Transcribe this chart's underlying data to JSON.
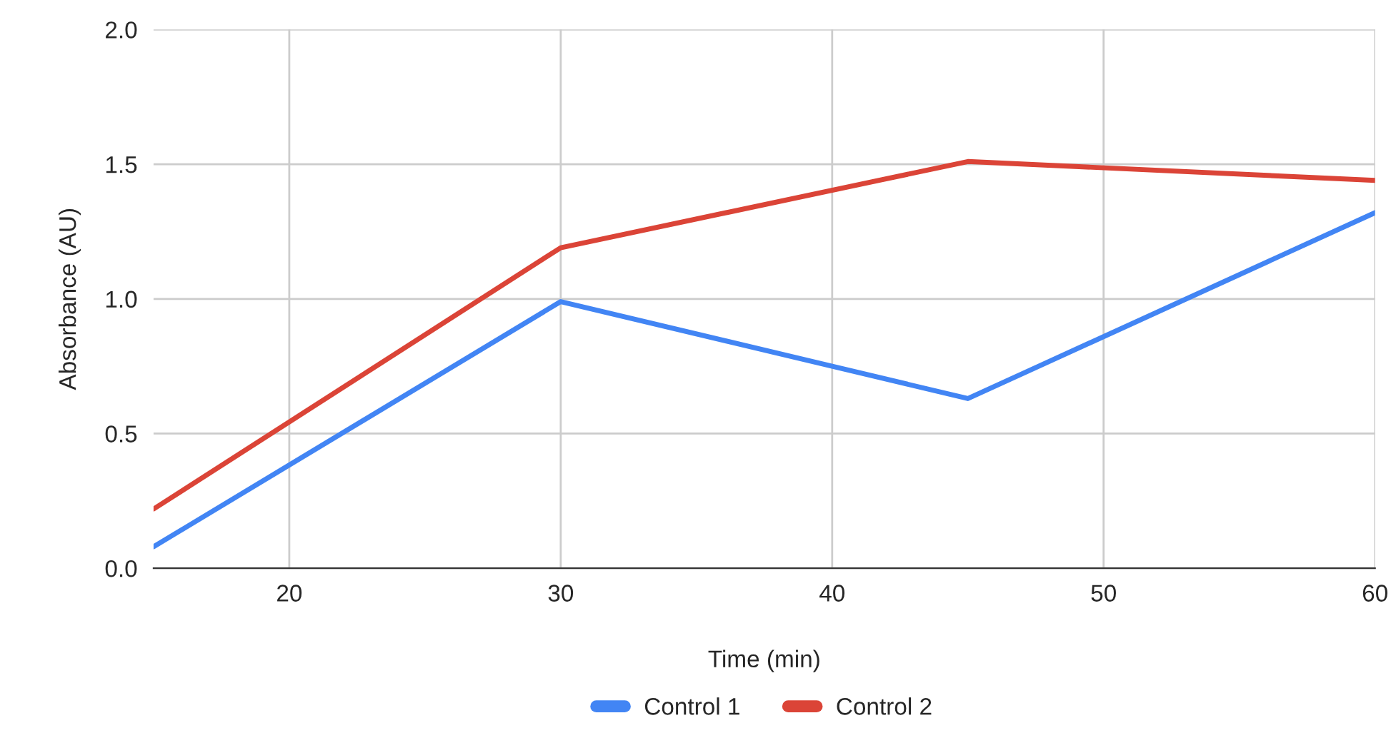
{
  "chart_data": {
    "type": "line",
    "xlabel": "Time (min)",
    "ylabel": "Absorbance (AU)",
    "x": [
      15,
      30,
      45,
      60
    ],
    "series": [
      {
        "name": "Control 1",
        "color": "#4285f4",
        "values": [
          0.08,
          0.99,
          0.63,
          1.32
        ]
      },
      {
        "name": "Control 2",
        "color": "#db4437",
        "values": [
          0.22,
          1.19,
          1.51,
          1.44
        ]
      }
    ],
    "xlim": [
      15,
      60
    ],
    "xticks": [
      20,
      30,
      40,
      50,
      60
    ],
    "ylim": [
      0,
      2
    ],
    "yticks": [
      {
        "value": 0,
        "label": "0.0"
      },
      {
        "value": 0.5,
        "label": "0.5"
      },
      {
        "value": 1,
        "label": "1.0"
      },
      {
        "value": 1.5,
        "label": "1.5"
      },
      {
        "value": 2,
        "label": "2.0"
      }
    ],
    "grid": true,
    "legend": "bottom",
    "marker": "none",
    "line_style": "solid"
  }
}
